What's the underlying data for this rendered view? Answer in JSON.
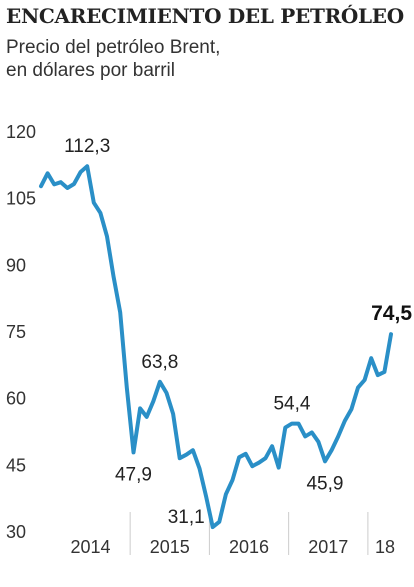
{
  "title": "ENCARECIMIENTO DEL PETRÓLEO",
  "subtitle_lines": [
    "Precio del petróleo Brent,",
    "en dólares por barril"
  ],
  "colors": {
    "line": "#2a8fc7",
    "grid": "#cccccc",
    "text": "#333333"
  },
  "chart_data": {
    "type": "line",
    "title": "ENCARECIMIENTO DEL PETRÓLEO",
    "subtitle": "Precio del petróleo Brent, en dólares por barril",
    "xlabel": "",
    "ylabel": "",
    "ylim": [
      30,
      120
    ],
    "yticks": [
      120,
      105,
      90,
      75,
      60,
      45,
      30
    ],
    "year_labels": [
      "2014",
      "2015",
      "2016",
      "2017",
      "18"
    ],
    "grid": "vertical year separators",
    "x": [
      "2013-11",
      "2013-12",
      "2014-01",
      "2014-02",
      "2014-03",
      "2014-04",
      "2014-05",
      "2014-06",
      "2014-07",
      "2014-08",
      "2014-09",
      "2014-10",
      "2014-11",
      "2014-12",
      "2015-01",
      "2015-02",
      "2015-03",
      "2015-04",
      "2015-05",
      "2015-06",
      "2015-07",
      "2015-08",
      "2015-09",
      "2015-10",
      "2015-11",
      "2015-12",
      "2016-01",
      "2016-02",
      "2016-03",
      "2016-04",
      "2016-05",
      "2016-06",
      "2016-07",
      "2016-08",
      "2016-09",
      "2016-10",
      "2016-11",
      "2016-12",
      "2017-01",
      "2017-02",
      "2017-03",
      "2017-04",
      "2017-05",
      "2017-06",
      "2017-07",
      "2017-08",
      "2017-09",
      "2017-10",
      "2017-11",
      "2017-12",
      "2018-01",
      "2018-02",
      "2018-03",
      "2018-04"
    ],
    "series": [
      {
        "values": [
          107.8,
          110.7,
          108.2,
          108.7,
          107.4,
          108.3,
          111.0,
          112.3,
          104.1,
          101.8,
          96.5,
          87.4,
          79.4,
          62.5,
          47.9,
          57.8,
          55.9,
          59.4,
          63.8,
          61.3,
          56.6,
          46.6,
          47.4,
          48.4,
          44.3,
          38.0,
          31.1,
          32.3,
          38.5,
          41.7,
          46.8,
          47.6,
          44.8,
          45.6,
          46.6,
          49.3,
          44.5,
          53.5,
          54.4,
          54.4,
          51.5,
          52.4,
          50.3,
          45.9,
          48.4,
          51.5,
          55.0,
          57.6,
          62.5,
          64.2,
          69.1,
          65.3,
          66.0,
          74.5
        ]
      }
    ],
    "annotations": [
      {
        "text": "112,3",
        "index": 7,
        "position": "above"
      },
      {
        "text": "47,9",
        "index": 14,
        "position": "below"
      },
      {
        "text": "63,8",
        "index": 18,
        "position": "above"
      },
      {
        "text": "31,1",
        "index": 26,
        "position": "below-left"
      },
      {
        "text": "54,4",
        "index": 38,
        "position": "above"
      },
      {
        "text": "45,9",
        "index": 43,
        "position": "below"
      },
      {
        "text": "74,5",
        "index": 53,
        "position": "above-end",
        "bold": true
      }
    ]
  }
}
